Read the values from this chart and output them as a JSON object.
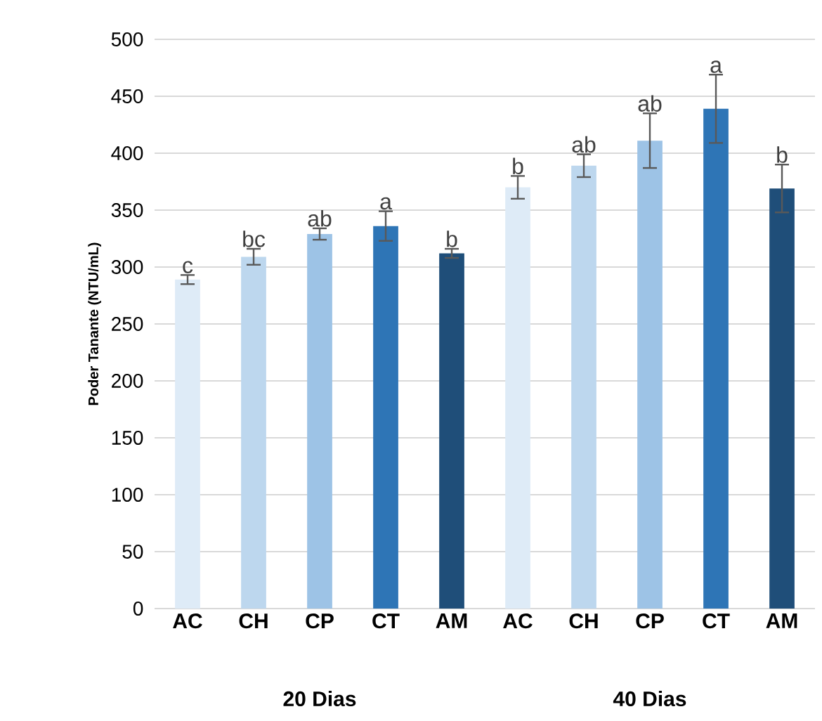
{
  "chart_data": {
    "type": "bar",
    "ylabel": "Poder Tanante (NTU/mL)",
    "categories": [
      "AC",
      "CH",
      "CP",
      "CT",
      "AM",
      "AC",
      "CH",
      "CP",
      "CT",
      "AM"
    ],
    "values": [
      289,
      309,
      329,
      336,
      312,
      370,
      389,
      411,
      439,
      369
    ],
    "errors": [
      4,
      7,
      5,
      13,
      4,
      10,
      10,
      24,
      30,
      21
    ],
    "value_labels": [
      "c",
      "bc",
      "ab",
      "a",
      "b",
      "b",
      "ab",
      "ab",
      "a",
      "b"
    ],
    "colors": [
      "#deebf7",
      "#bdd7ee",
      "#9dc3e6",
      "#2e75b6",
      "#1f4e79",
      "#deebf7",
      "#bdd7ee",
      "#9dc3e6",
      "#2e75b6",
      "#1f4e79"
    ],
    "annotations": [
      "20 Dias",
      "40 Dias"
    ],
    "ylim": [
      0,
      500
    ],
    "yticks": [
      0,
      50,
      100,
      150,
      200,
      250,
      300,
      350,
      400,
      450,
      500
    ],
    "grid": "y"
  }
}
